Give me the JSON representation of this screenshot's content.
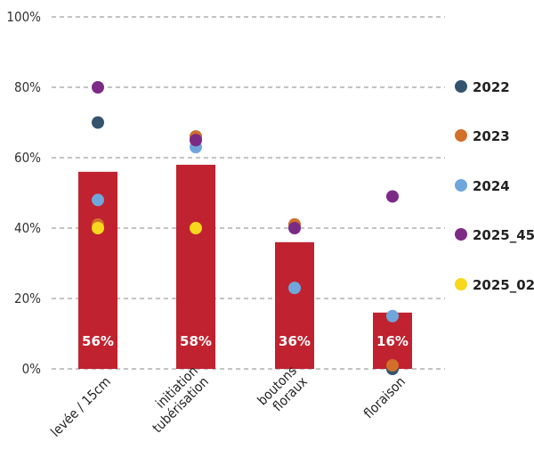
{
  "chart_data": {
    "type": "bar",
    "categories": [
      "levée / 15cm",
      "initiation tubérisation",
      "boutons floraux",
      "floraison"
    ],
    "category_lines": [
      [
        "levée / 15cm"
      ],
      [
        "initiation",
        "tubérisation"
      ],
      [
        "boutons",
        "floraux"
      ],
      [
        "floraison"
      ]
    ],
    "bar_values": [
      56,
      58,
      36,
      16
    ],
    "bar_labels": [
      "56%",
      "58%",
      "36%",
      "16%"
    ],
    "bar_color": "#c0222f",
    "ylim": [
      0,
      100
    ],
    "yticks": [
      0,
      20,
      40,
      60,
      80,
      100
    ],
    "ytick_labels": [
      "0%",
      "20%",
      "40%",
      "60%",
      "80%",
      "100%"
    ],
    "grid": true,
    "legend_position": "right",
    "series": [
      {
        "name": "2022",
        "color": "#34546e",
        "values": [
          70,
          66,
          41,
          0
        ]
      },
      {
        "name": "2023",
        "color": "#d2702a",
        "values": [
          41,
          66,
          41,
          1
        ]
      },
      {
        "name": "2024",
        "color": "#6fa7dc",
        "values": [
          48,
          63,
          23,
          15
        ]
      },
      {
        "name": "2025_45",
        "color": "#7d2a86",
        "values": [
          80,
          65,
          40,
          49
        ]
      },
      {
        "name": "2025_02",
        "color": "#f7d81c",
        "values": [
          40,
          40,
          null,
          null
        ]
      }
    ]
  }
}
